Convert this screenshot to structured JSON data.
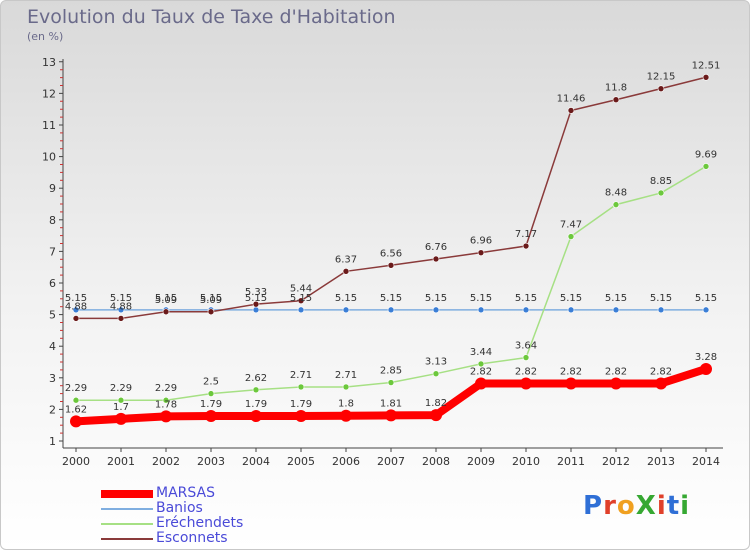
{
  "title": "Evolution du Taux de Taxe d'Habitation",
  "subtitle": "(en %)",
  "logo": {
    "text": "ProXiti",
    "letters": [
      {
        "ch": "P",
        "color": "#2f6fd6"
      },
      {
        "ch": "r",
        "color": "#e0402a"
      },
      {
        "ch": "o",
        "color": "#f0a020"
      },
      {
        "ch": "X",
        "color": "#36a832"
      },
      {
        "ch": "i",
        "color": "#e0402a"
      },
      {
        "ch": "t",
        "color": "#2f6fd6"
      },
      {
        "ch": "i",
        "color": "#36a832"
      }
    ]
  },
  "chart_data": {
    "type": "line",
    "title": "Evolution du Taux de Taxe d'Habitation",
    "ylabel": "(en %)",
    "xlabel": "",
    "x": [
      "2000",
      "2001",
      "2002",
      "2003",
      "2004",
      "2005",
      "2006",
      "2007",
      "2008",
      "2009",
      "2010",
      "2011",
      "2012",
      "2013",
      "2014"
    ],
    "ylim": [
      1,
      13
    ],
    "yticks": [
      "1",
      "2",
      "3",
      "4",
      "5",
      "6",
      "7",
      "8",
      "9",
      "10",
      "11",
      "12",
      "13"
    ],
    "grid": false,
    "legend": "bottom-left",
    "series": [
      {
        "name": "MARSAS",
        "color": "#ff0000",
        "point_color": "#ff0000",
        "emphasis": true,
        "values": [
          1.62,
          1.7,
          1.78,
          1.79,
          1.79,
          1.79,
          1.8,
          1.81,
          1.82,
          2.82,
          2.82,
          2.82,
          2.82,
          2.82,
          3.28
        ],
        "labels": [
          "1.62",
          "1.7",
          "1.78",
          "1.79",
          "1.79",
          "1.79",
          "1.8",
          "1.81",
          "1.82",
          "2.82",
          "2.82",
          "2.82",
          "2.82",
          "2.82",
          "3.28"
        ]
      },
      {
        "name": "Banios",
        "color": "#7faee0",
        "point_color": "#3a7ed6",
        "values": [
          5.15,
          5.15,
          5.15,
          5.15,
          5.15,
          5.15,
          5.15,
          5.15,
          5.15,
          5.15,
          5.15,
          5.15,
          5.15,
          5.15,
          5.15
        ],
        "labels": [
          "5.15",
          "5.15",
          "5.15",
          "5.15",
          "5.15",
          "5.15",
          "5.15",
          "5.15",
          "5.15",
          "5.15",
          "5.15",
          "5.15",
          "5.15",
          "5.15",
          "5.15"
        ]
      },
      {
        "name": "Eréchendets",
        "color": "#a6e084",
        "point_color": "#6cc83c",
        "values": [
          2.29,
          2.29,
          2.29,
          2.5,
          2.62,
          2.71,
          2.71,
          2.85,
          3.13,
          3.44,
          3.64,
          7.47,
          8.48,
          8.85,
          9.69
        ],
        "labels": [
          "2.29",
          "2.29",
          "2.29",
          "2.5",
          "2.62",
          "2.71",
          "2.71",
          "2.85",
          "3.13",
          "3.44",
          "3.64",
          "7.47",
          "8.48",
          "8.85",
          "9.69"
        ]
      },
      {
        "name": "Esconnets",
        "color": "#8a3a3a",
        "point_color": "#6a1a1a",
        "values": [
          4.88,
          4.88,
          5.09,
          5.09,
          5.33,
          5.44,
          6.37,
          6.56,
          6.76,
          6.96,
          7.17,
          11.46,
          11.8,
          12.15,
          12.51
        ],
        "labels": [
          "4.88",
          "4.88",
          "5.09",
          "5.09",
          "5.33",
          "5.44",
          "6.37",
          "6.56",
          "6.76",
          "6.96",
          "7.17",
          "11.46",
          "11.8",
          "12.15",
          "12.51"
        ]
      }
    ]
  }
}
